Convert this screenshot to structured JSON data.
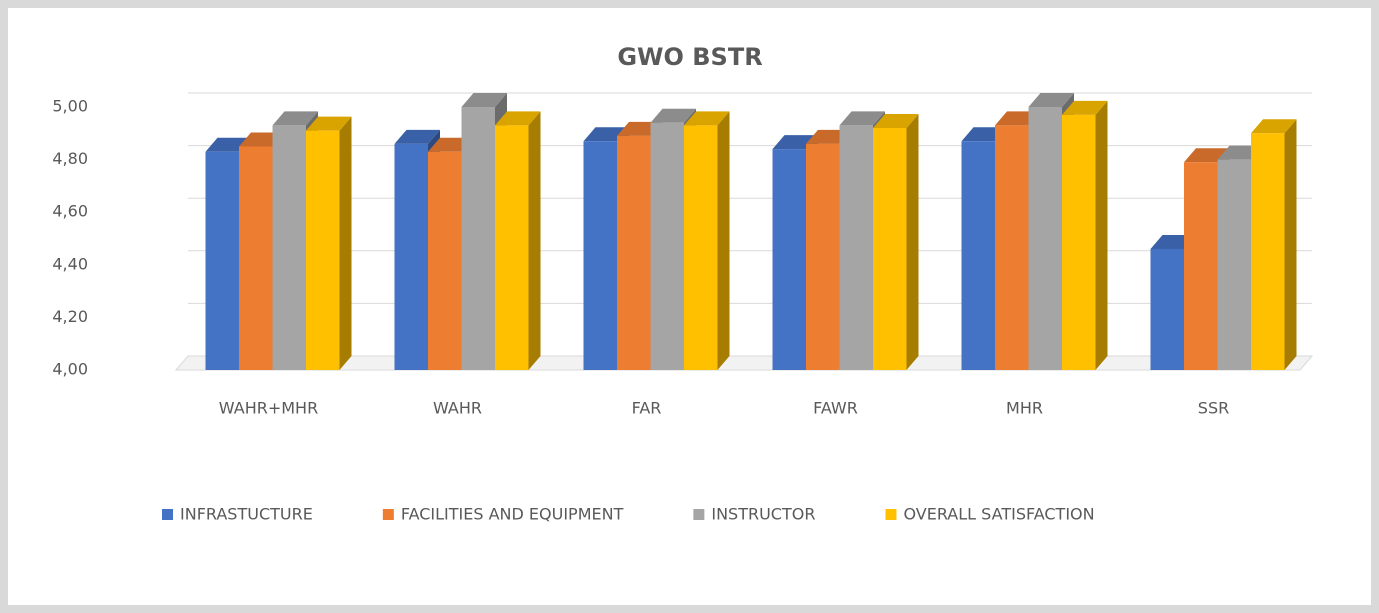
{
  "chart_data": {
    "type": "bar3d",
    "title": "GWO BSTR",
    "categories": [
      "WAHR+MHR",
      "WAHR",
      "FAR",
      "FAWR",
      "MHR",
      "SSR"
    ],
    "series": [
      {
        "name": "INFRASTUCTURE",
        "color": "#4472c4",
        "values": [
          4.83,
          4.86,
          4.87,
          4.84,
          4.87,
          4.46
        ]
      },
      {
        "name": "FACILITIES AND EQUIPMENT",
        "color": "#ed7d31",
        "values": [
          4.85,
          4.83,
          4.89,
          4.86,
          4.93,
          4.79
        ]
      },
      {
        "name": "INSTRUCTOR",
        "color": "#a5a5a5",
        "values": [
          4.93,
          5.0,
          4.94,
          4.93,
          5.0,
          4.8
        ]
      },
      {
        "name": "OVERALL SATISFACTION",
        "color": "#ffc000",
        "values": [
          4.91,
          4.93,
          4.93,
          4.92,
          4.97,
          4.9
        ]
      }
    ],
    "ylim": [
      4,
      5
    ],
    "yticks": [
      {
        "value": 4,
        "label": "4,00"
      },
      {
        "value": 4.2,
        "label": "4,20"
      },
      {
        "value": 4.4,
        "label": "4,40"
      },
      {
        "value": 4.6,
        "label": "4,60"
      },
      {
        "value": 4.8,
        "label": "4,80"
      },
      {
        "value": 5,
        "label": "5,00"
      }
    ],
    "grid": true,
    "legend": "bottom"
  }
}
